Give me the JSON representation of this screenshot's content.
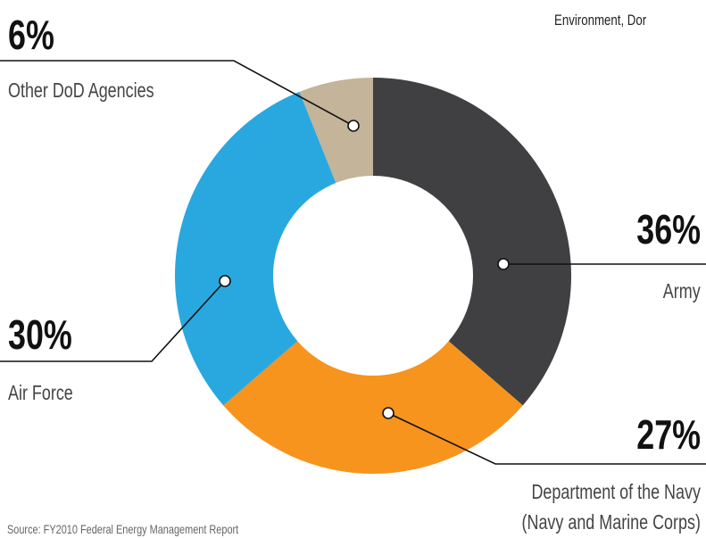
{
  "header": {
    "text": "Environment, Dor"
  },
  "chart_data": {
    "type": "pie",
    "categories": [
      "Army",
      "Department of the Navy\n(Navy and Marine Corps)",
      "Air Force",
      "Other DoD Agencies"
    ],
    "values": [
      36,
      27,
      30,
      6
    ],
    "value_labels": [
      "36%",
      "27%",
      "30%",
      "6%"
    ],
    "colors": [
      "#404042",
      "#f7941d",
      "#29a8e0",
      "#c3b49a"
    ],
    "donut": true
  },
  "footer": {
    "source": "Source: FY2010 Federal Energy Management Report"
  }
}
